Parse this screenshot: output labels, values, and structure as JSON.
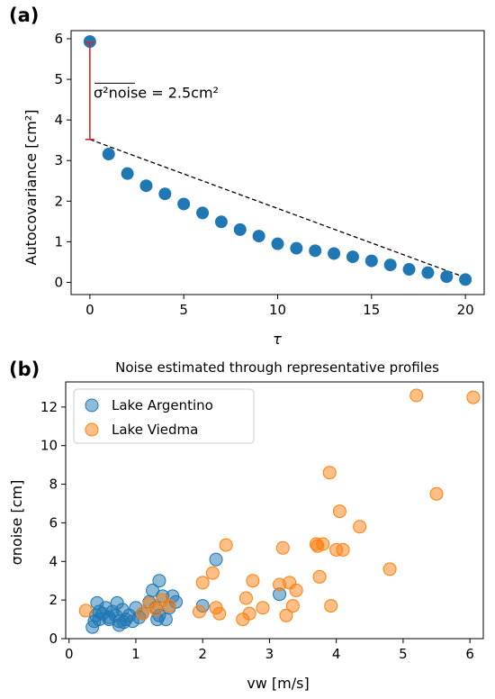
{
  "chart_data": [
    {
      "panel_label": "(a)",
      "type": "scatter",
      "title": "",
      "xlabel": "τ",
      "ylabel": "Autocovariance [cm²]",
      "xlim": [
        -1,
        21
      ],
      "ylim": [
        -0.3,
        6.2
      ],
      "xticks": [
        "0",
        "5",
        "10",
        "15",
        "20"
      ],
      "yticks": [
        "0",
        "1",
        "2",
        "3",
        "4",
        "5",
        "6"
      ],
      "series": [
        {
          "color": "#1f77b4",
          "x": [
            0,
            1,
            2,
            3,
            4,
            5,
            6,
            7,
            8,
            9,
            10,
            11,
            12,
            13,
            14,
            15,
            16,
            17,
            18,
            19,
            20
          ],
          "y": [
            5.93,
            3.16,
            2.68,
            2.38,
            2.18,
            1.93,
            1.71,
            1.49,
            1.3,
            1.14,
            0.95,
            0.84,
            0.78,
            0.71,
            0.63,
            0.53,
            0.43,
            0.32,
            0.24,
            0.14,
            0.07
          ]
        }
      ],
      "fit_line": {
        "style": "dashed",
        "color": "#000000",
        "x": [
          0,
          20
        ],
        "y": [
          3.52,
          0.12
        ]
      },
      "error_bar": {
        "color": "#d62728",
        "x": 0,
        "y_low": 3.52,
        "y_high": 5.9
      },
      "annotation": {
        "text": "σ²noise = 2.5cm²",
        "x": 0.2,
        "y": 4.55
      }
    },
    {
      "panel_label": "(b)",
      "type": "scatter",
      "title": "Noise estimated through representative profiles",
      "xlabel": "vw [m/s]",
      "ylabel": "σnoise [cm]",
      "xlim": [
        -0.05,
        6.2
      ],
      "ylim": [
        0,
        13.3
      ],
      "xticks": [
        "0",
        "1",
        "2",
        "3",
        "4",
        "5",
        "6"
      ],
      "yticks": [
        "0",
        "2",
        "4",
        "6",
        "8",
        "10",
        "12"
      ],
      "legend_position": "top-left",
      "series": [
        {
          "name": "Lake Argentino",
          "color": "#1f77b4",
          "x": [
            0.35,
            0.38,
            0.4,
            0.42,
            0.45,
            0.5,
            0.55,
            0.6,
            0.65,
            0.7,
            0.72,
            0.75,
            0.8,
            0.82,
            0.85,
            0.9,
            0.95,
            1.0,
            1.05,
            1.1,
            1.2,
            1.25,
            1.3,
            1.32,
            1.35,
            1.4,
            1.45,
            1.5,
            1.55,
            1.6,
            2.0,
            2.2,
            3.15,
            0.45,
            0.6,
            0.75,
            1.35
          ],
          "y": [
            0.6,
            0.9,
            1.2,
            1.85,
            1.0,
            1.3,
            1.6,
            1.1,
            1.4,
            1.2,
            1.85,
            0.9,
            1.5,
            0.85,
            1.0,
            1.2,
            0.9,
            1.6,
            1.1,
            1.3,
            1.9,
            2.5,
            1.6,
            1.0,
            3.0,
            2.2,
            1.0,
            1.6,
            2.2,
            1.9,
            1.7,
            4.1,
            2.3,
            1.4,
            1.0,
            0.7,
            1.2
          ]
        },
        {
          "name": "Lake Viedma",
          "color": "#ff7f0e",
          "x": [
            0.25,
            1.1,
            1.2,
            1.3,
            1.4,
            1.5,
            1.95,
            2.0,
            2.15,
            2.2,
            2.25,
            2.35,
            2.6,
            2.65,
            2.7,
            2.75,
            2.9,
            3.15,
            3.2,
            3.25,
            3.3,
            3.35,
            3.4,
            3.7,
            3.72,
            3.75,
            3.8,
            3.9,
            3.92,
            4.0,
            4.05,
            4.1,
            4.35,
            4.8,
            5.2,
            5.5,
            6.05
          ],
          "y": [
            1.45,
            1.3,
            1.8,
            1.5,
            2.0,
            1.7,
            1.4,
            2.9,
            3.4,
            1.6,
            1.3,
            4.85,
            1.0,
            2.1,
            1.3,
            3.0,
            1.6,
            2.8,
            4.7,
            1.2,
            2.9,
            1.7,
            2.5,
            4.9,
            4.8,
            3.2,
            4.9,
            8.6,
            1.7,
            4.6,
            6.6,
            4.6,
            5.8,
            3.6,
            12.6,
            7.5,
            12.5
          ]
        }
      ]
    }
  ]
}
